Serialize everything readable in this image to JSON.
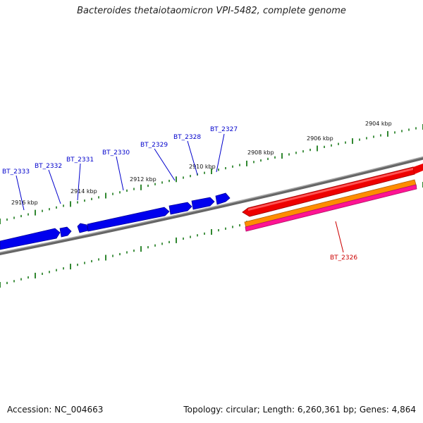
{
  "title": "Bacteroides thetaiotaomicron VPI-5482, complete genome",
  "footer": {
    "accession": "Accession: NC_004663",
    "info": "Topology: circular; Length: 6,260,361 bp; Genes: 4,864"
  },
  "scale_labels": [
    "2904 kbp",
    "2906 kbp",
    "2908 kbp",
    "2910 kbp",
    "2912 kbp",
    "2914 kbp",
    "2916 kbp"
  ],
  "genes": [
    {
      "name": "BT_2326",
      "strand": "forward",
      "color": "#cc0000"
    },
    {
      "name": "BT_2327",
      "strand": "reverse",
      "color": "#0000cc"
    },
    {
      "name": "BT_2328",
      "strand": "reverse",
      "color": "#0000cc"
    },
    {
      "name": "BT_2329",
      "strand": "reverse",
      "color": "#0000cc"
    },
    {
      "name": "BT_2330",
      "strand": "reverse",
      "color": "#0000cc"
    },
    {
      "name": "BT_2331",
      "strand": "reverse",
      "color": "#0000cc"
    },
    {
      "name": "BT_2332",
      "strand": "reverse",
      "color": "#0000cc"
    },
    {
      "name": "BT_2333",
      "strand": "reverse",
      "color": "#0000cc"
    }
  ],
  "colors": {
    "backbone": "#888888",
    "forward_gene": "#ff0000",
    "reverse_gene": "#0000ff",
    "cds_band": "#ff8c00",
    "rna_band": "#ff1493",
    "ticks": "#1a7a1a"
  }
}
